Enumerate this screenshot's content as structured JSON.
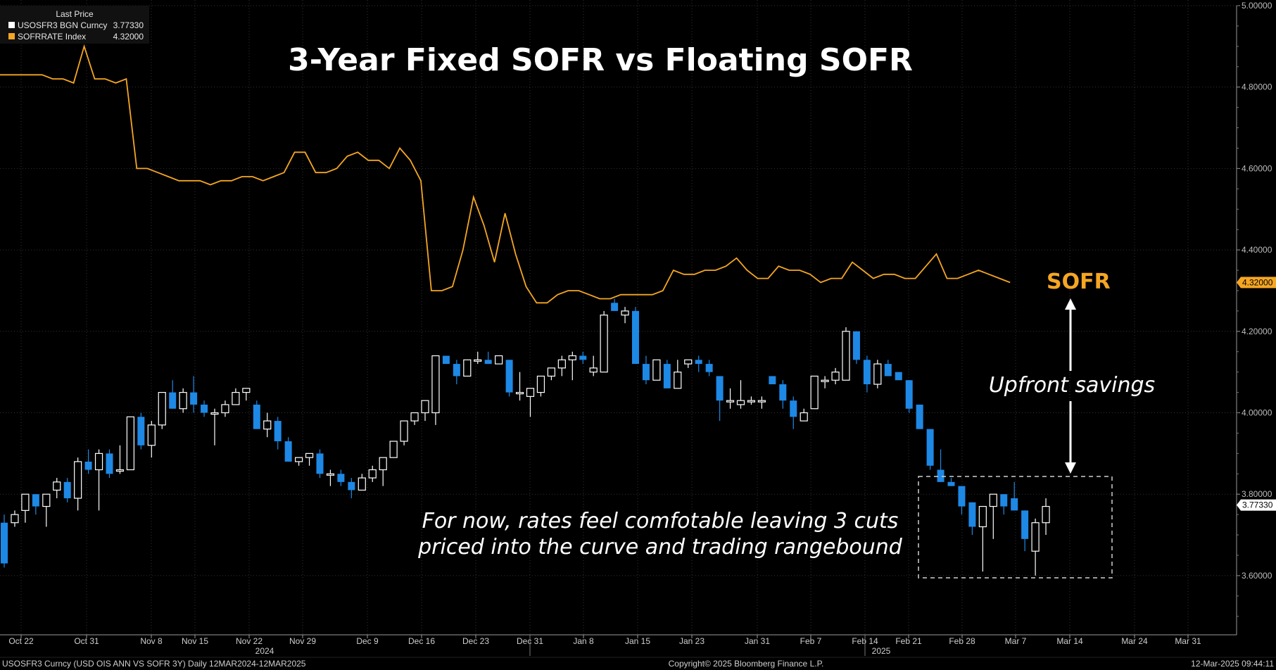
{
  "legend": {
    "header": "Last Price",
    "items": [
      {
        "name": "USOSFR3 BGN Curncy",
        "value": "3.77330",
        "color": "#ffffff"
      },
      {
        "name": "SOFRRATE Index",
        "value": "4.32000",
        "color": "#f5a623"
      }
    ]
  },
  "footer": {
    "left": "USOSFR3 Curncy (USD OIS ANN VS SOFR 3Y) Daily 12MAR2024-12MAR2025",
    "center": "Copyright© 2025 Bloomberg Finance L.P.",
    "right": "12-Mar-2025 09:44:11"
  },
  "annotations": {
    "sofr_label": "SOFR",
    "upfront": "Upfront savings",
    "note_line1": "For now, rates feel comfotable leaving 3 cuts",
    "note_line2": "priced into the curve and trading rangebound"
  },
  "colors": {
    "background": "#000000",
    "sofr_line": "#f5a623",
    "candle_up": "#ffffff",
    "candle_down": "#1e88e5",
    "grid": "#333333"
  },
  "chart_data": {
    "type": "line",
    "title": "3-Year Fixed SOFR vs Floating SOFR",
    "ylim": [
      3.45,
      5.0
    ],
    "yticks": [
      "3.60000",
      "3.80000",
      "4.00000",
      "4.20000",
      "4.40000",
      "4.60000",
      "4.80000",
      "5.00000"
    ],
    "grid": true,
    "legend_position": "top-left",
    "x_tick_labels": [
      "Oct 22",
      "Oct 31",
      "Nov 8",
      "Nov 15",
      "Nov 22",
      "Nov 29",
      "Dec 9",
      "Dec 16",
      "Dec 23",
      "Dec 31",
      "Jan 8",
      "Jan 15",
      "Jan 23",
      "Jan 31",
      "Feb 7",
      "Feb 14",
      "Feb 21",
      "Feb 28",
      "Mar 7",
      "Mar 14",
      "Mar 24",
      "Mar 31"
    ],
    "x_year_labels": [
      {
        "after": "Nov 22",
        "label": "2024"
      },
      {
        "after": "Feb 14",
        "label": "2025"
      }
    ],
    "last_value_tags": [
      {
        "series": "SOFRRATE Index",
        "value": 4.32,
        "label": "4.32000"
      },
      {
        "series": "USOSFR3 BGN Curncy",
        "value": 3.7733,
        "label": "3.77330"
      }
    ],
    "series": [
      {
        "name": "SOFRRATE Index",
        "kind": "line",
        "values": [
          4.83,
          4.83,
          4.83,
          4.83,
          4.83,
          4.82,
          4.82,
          4.81,
          4.9,
          4.82,
          4.82,
          4.81,
          4.82,
          4.6,
          4.6,
          4.59,
          4.58,
          4.57,
          4.57,
          4.57,
          4.56,
          4.57,
          4.57,
          4.58,
          4.58,
          4.57,
          4.58,
          4.59,
          4.64,
          4.64,
          4.59,
          4.59,
          4.6,
          4.63,
          4.64,
          4.62,
          4.62,
          4.6,
          4.65,
          4.62,
          4.57,
          4.3,
          4.3,
          4.31,
          4.4,
          4.53,
          4.46,
          4.37,
          4.49,
          4.39,
          4.31,
          4.27,
          4.27,
          4.29,
          4.3,
          4.3,
          4.29,
          4.28,
          4.28,
          4.29,
          4.29,
          4.29,
          4.29,
          4.3,
          4.35,
          4.34,
          4.34,
          4.35,
          4.35,
          4.36,
          4.38,
          4.35,
          4.33,
          4.33,
          4.36,
          4.35,
          4.35,
          4.34,
          4.32,
          4.33,
          4.33,
          4.37,
          4.35,
          4.33,
          4.34,
          4.34,
          4.33,
          4.33,
          4.36,
          4.39,
          4.33,
          4.33,
          4.34,
          4.35,
          4.34,
          4.33,
          4.32
        ]
      },
      {
        "name": "USOSFR3 BGN Curncy",
        "kind": "candlestick",
        "ohlc": [
          [
            3.73,
            3.75,
            3.62,
            3.63
          ],
          [
            3.73,
            3.76,
            3.72,
            3.75
          ],
          [
            3.76,
            3.8,
            3.73,
            3.8
          ],
          [
            3.8,
            3.8,
            3.75,
            3.77
          ],
          [
            3.77,
            3.8,
            3.72,
            3.8
          ],
          [
            3.81,
            3.84,
            3.79,
            3.83
          ],
          [
            3.83,
            3.84,
            3.78,
            3.79
          ],
          [
            3.79,
            3.89,
            3.76,
            3.88
          ],
          [
            3.88,
            3.91,
            3.85,
            3.86
          ],
          [
            3.86,
            3.91,
            3.76,
            3.9
          ],
          [
            3.9,
            3.91,
            3.84,
            3.85
          ],
          [
            3.86,
            3.92,
            3.85,
            3.86
          ],
          [
            3.86,
            3.99,
            3.86,
            3.99
          ],
          [
            3.99,
            4.0,
            3.91,
            3.92
          ],
          [
            3.92,
            3.98,
            3.89,
            3.97
          ],
          [
            3.97,
            4.05,
            3.96,
            4.05
          ],
          [
            4.05,
            4.08,
            4.01,
            4.01
          ],
          [
            4.01,
            4.06,
            4.0,
            4.05
          ],
          [
            4.05,
            4.09,
            4.0,
            4.02
          ],
          [
            4.02,
            4.03,
            3.99,
            4.0
          ],
          [
            4.0,
            4.01,
            3.92,
            4.0
          ],
          [
            4.0,
            4.03,
            3.99,
            4.02
          ],
          [
            4.02,
            4.06,
            4.02,
            4.05
          ],
          [
            4.05,
            4.06,
            4.03,
            4.06
          ],
          [
            4.02,
            4.03,
            3.96,
            3.96
          ],
          [
            3.96,
            4.0,
            3.94,
            3.98
          ],
          [
            3.98,
            3.99,
            3.91,
            3.93
          ],
          [
            3.93,
            3.94,
            3.88,
            3.88
          ],
          [
            3.88,
            3.89,
            3.87,
            3.89
          ],
          [
            3.89,
            3.9,
            3.87,
            3.9
          ],
          [
            3.9,
            3.91,
            3.84,
            3.85
          ],
          [
            3.85,
            3.86,
            3.82,
            3.85
          ],
          [
            3.85,
            3.86,
            3.82,
            3.83
          ],
          [
            3.83,
            3.84,
            3.79,
            3.81
          ],
          [
            3.81,
            3.85,
            3.81,
            3.84
          ],
          [
            3.84,
            3.87,
            3.83,
            3.86
          ],
          [
            3.86,
            3.89,
            3.82,
            3.89
          ],
          [
            3.89,
            3.93,
            3.89,
            3.93
          ],
          [
            3.93,
            3.98,
            3.92,
            3.98
          ],
          [
            3.98,
            4.0,
            3.97,
            4.0
          ],
          [
            4.0,
            4.03,
            3.98,
            4.03
          ],
          [
            4.0,
            4.14,
            3.97,
            4.14
          ],
          [
            4.14,
            4.14,
            4.12,
            4.12
          ],
          [
            4.12,
            4.13,
            4.07,
            4.09
          ],
          [
            4.09,
            4.13,
            4.09,
            4.13
          ],
          [
            4.13,
            4.15,
            4.12,
            4.13
          ],
          [
            4.13,
            4.15,
            4.12,
            4.12
          ],
          [
            4.12,
            4.14,
            4.12,
            4.14
          ],
          [
            4.13,
            4.13,
            4.04,
            4.05
          ],
          [
            4.05,
            4.1,
            4.03,
            4.05
          ],
          [
            4.04,
            4.06,
            3.99,
            4.06
          ],
          [
            4.05,
            4.09,
            4.04,
            4.09
          ],
          [
            4.09,
            4.11,
            4.08,
            4.11
          ],
          [
            4.11,
            4.14,
            4.09,
            4.13
          ],
          [
            4.13,
            4.15,
            4.08,
            4.14
          ],
          [
            4.14,
            4.15,
            4.12,
            4.13
          ],
          [
            4.1,
            4.14,
            4.09,
            4.11
          ],
          [
            4.1,
            4.25,
            4.1,
            4.24
          ],
          [
            4.27,
            4.28,
            4.25,
            4.25
          ],
          [
            4.24,
            4.26,
            4.22,
            4.25
          ],
          [
            4.25,
            4.26,
            4.12,
            4.12
          ],
          [
            4.12,
            4.14,
            4.07,
            4.08
          ],
          [
            4.08,
            4.13,
            4.08,
            4.13
          ],
          [
            4.12,
            4.13,
            4.06,
            4.06
          ],
          [
            4.06,
            4.13,
            4.06,
            4.1
          ],
          [
            4.12,
            4.13,
            4.11,
            4.13
          ],
          [
            4.13,
            4.14,
            4.1,
            4.12
          ],
          [
            4.12,
            4.13,
            4.09,
            4.1
          ],
          [
            4.09,
            4.09,
            3.98,
            4.03
          ],
          [
            4.03,
            4.06,
            4.01,
            4.03
          ],
          [
            4.02,
            4.08,
            4.01,
            4.03
          ],
          [
            4.03,
            4.04,
            4.02,
            4.03
          ],
          [
            4.03,
            4.04,
            4.01,
            4.03
          ],
          [
            4.09,
            4.09,
            4.07,
            4.07
          ],
          [
            4.07,
            4.08,
            4.01,
            4.03
          ],
          [
            4.03,
            4.04,
            3.96,
            3.99
          ],
          [
            3.98,
            4.01,
            3.98,
            4.0
          ],
          [
            4.01,
            4.09,
            4.01,
            4.09
          ],
          [
            4.08,
            4.09,
            4.06,
            4.08
          ],
          [
            4.08,
            4.11,
            4.07,
            4.1
          ],
          [
            4.08,
            4.21,
            4.08,
            4.2
          ],
          [
            4.2,
            4.2,
            4.12,
            4.13
          ],
          [
            4.13,
            4.14,
            4.05,
            4.07
          ],
          [
            4.07,
            4.13,
            4.06,
            4.12
          ],
          [
            4.12,
            4.13,
            4.09,
            4.09
          ],
          [
            4.1,
            4.1,
            4.08,
            4.08
          ],
          [
            4.08,
            4.08,
            4.0,
            4.01
          ],
          [
            4.02,
            4.02,
            3.96,
            3.96
          ],
          [
            3.96,
            3.96,
            3.86,
            3.87
          ],
          [
            3.86,
            3.91,
            3.83,
            3.83
          ],
          [
            3.83,
            3.84,
            3.82,
            3.82
          ],
          [
            3.82,
            3.82,
            3.75,
            3.77
          ],
          [
            3.78,
            3.78,
            3.7,
            3.72
          ],
          [
            3.72,
            3.77,
            3.61,
            3.77
          ],
          [
            3.77,
            3.79,
            3.69,
            3.8
          ],
          [
            3.8,
            3.8,
            3.75,
            3.77
          ],
          [
            3.79,
            3.83,
            3.76,
            3.76
          ],
          [
            3.76,
            3.76,
            3.66,
            3.69
          ],
          [
            3.66,
            3.74,
            3.6,
            3.73
          ],
          [
            3.73,
            3.79,
            3.7,
            3.77
          ]
        ]
      }
    ]
  }
}
